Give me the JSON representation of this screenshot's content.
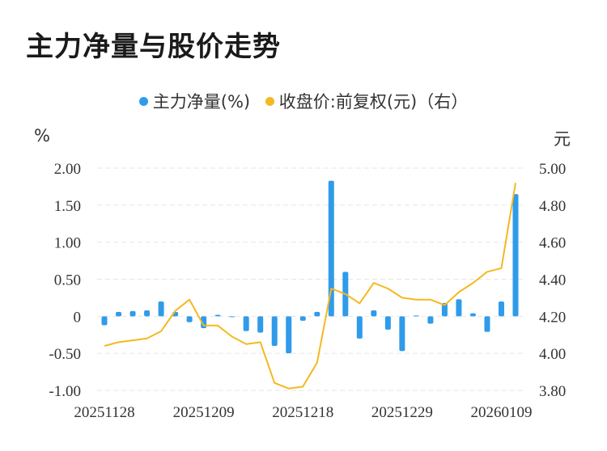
{
  "title": "主力净量与股价走势",
  "legend": [
    {
      "label": "主力净量(%)",
      "color": "#2f9bea"
    },
    {
      "label": "收盘价:前复权(元)（右）",
      "color": "#f5b820"
    }
  ],
  "units": {
    "left": "%",
    "right": "元"
  },
  "chart_data": {
    "type": "bar+line",
    "x_tick_labels": [
      "20251128",
      "20251209",
      "20251218",
      "20251229",
      "20260109"
    ],
    "x_tick_indices": [
      0,
      7,
      14,
      21,
      28
    ],
    "left_axis": {
      "ylim": [
        -1.0,
        2.0
      ],
      "ticks": [
        "2.00",
        "1.50",
        "1.00",
        "0.50",
        "0",
        "-0.50",
        "-1.00"
      ],
      "tick_values": [
        2.0,
        1.5,
        1.0,
        0.5,
        0,
        -0.5,
        -1.0
      ]
    },
    "right_axis": {
      "ylim": [
        3.8,
        5.0
      ],
      "ticks": [
        "5.00",
        "4.80",
        "4.60",
        "4.40",
        "4.20",
        "4.00",
        "3.80"
      ],
      "tick_values": [
        5.0,
        4.8,
        4.6,
        4.4,
        4.2,
        4.0,
        3.8
      ]
    },
    "grid": true,
    "series": [
      {
        "name": "主力净量(%)",
        "type": "bar",
        "color": "#2f9bea",
        "values": [
          -0.12,
          0.06,
          0.07,
          0.08,
          0.2,
          0.06,
          -0.08,
          -0.16,
          0.02,
          -0.01,
          -0.2,
          -0.22,
          -0.4,
          -0.5,
          -0.06,
          0.06,
          1.83,
          0.6,
          -0.3,
          0.08,
          -0.18,
          -0.47,
          0.01,
          -0.1,
          0.18,
          0.23,
          0.04,
          -0.21,
          0.2,
          1.65
        ]
      },
      {
        "name": "收盘价:前复权(元)",
        "type": "line",
        "color": "#f5b820",
        "values": [
          4.04,
          4.06,
          4.07,
          4.08,
          4.12,
          4.23,
          4.29,
          4.15,
          4.15,
          4.09,
          4.05,
          4.06,
          3.84,
          3.81,
          3.82,
          3.95,
          4.35,
          4.32,
          4.27,
          4.38,
          4.35,
          4.3,
          4.29,
          4.29,
          4.26,
          4.33,
          4.38,
          4.44,
          4.46,
          4.92
        ]
      }
    ]
  }
}
